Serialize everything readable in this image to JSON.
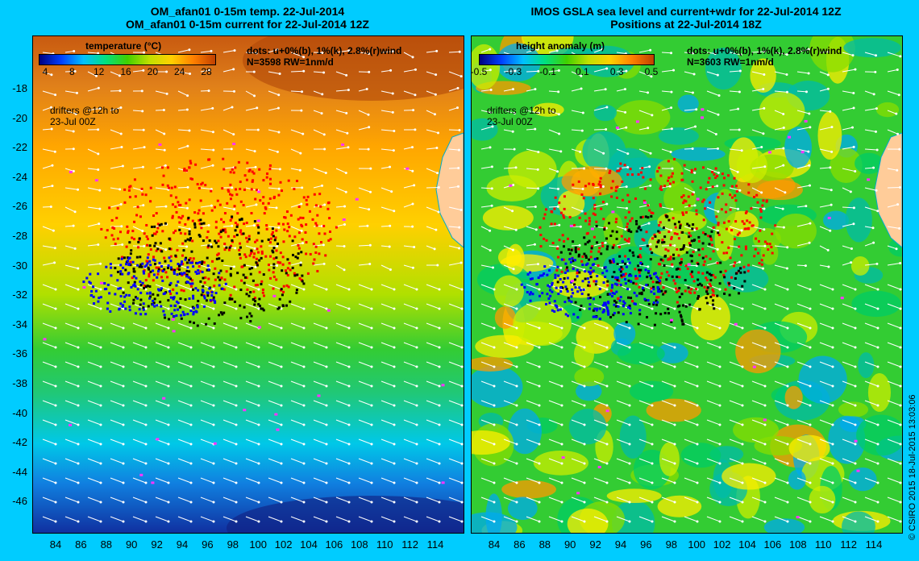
{
  "left_panel": {
    "title_line1": "OM_afan01 0-15m temp. 22-Jul-2014",
    "title_line2": "OM_afan01 0-15m current for 22-Jul-2014 12Z",
    "colorbar_title": "temperature (°C)",
    "colorbar_ticks": [
      "4",
      "8",
      "12",
      "16",
      "20",
      "24",
      "28"
    ],
    "dots_line1": "dots: u+0%(b), 1%(k), 2.8%(r)wind",
    "dots_line2": "N=3598 RW=1nm/d",
    "drifters_line1": "drifters @12h to",
    "drifters_line2": "23-Jul 00Z"
  },
  "right_panel": {
    "title_line1": "IMOS GSLA sea level and current+wdr for 22-Jul-2014 12Z",
    "title_line2": "Positions at 22-Jul-2014 18Z",
    "colorbar_title": "height anomaly (m)",
    "colorbar_ticks": [
      "-0.5",
      "-0.3",
      "-0.1",
      "0.1",
      "0.3",
      "0.5"
    ],
    "dots_line1": "dots: u+0%(b), 1%(k), 2.8%(r)wind",
    "dots_line2": "N=3603 RW=1nm/d",
    "drifters_line1": "drifters @12h to",
    "drifters_line2": "23-Jul 00Z"
  },
  "y_axis_labels": [
    "-18",
    "-20",
    "-22",
    "-24",
    "-26",
    "-28",
    "-30",
    "-32",
    "-34",
    "-36",
    "-38",
    "-40",
    "-42",
    "-44",
    "-46"
  ],
  "x_axis_labels": [
    "84",
    "86",
    "88",
    "90",
    "92",
    "94",
    "96",
    "98",
    "100",
    "102",
    "104",
    "106",
    "108",
    "110",
    "112",
    "114"
  ],
  "credit": "© CSIRO 2015   18-Jul-2015 13:03:06",
  "colors": {
    "background": "#00ccff",
    "land": "#ffcc99",
    "blue_dots": "#0000ff",
    "black_dots": "#000000",
    "red_dots": "#ff0000",
    "magenta_drifters": "#ff33ff"
  }
}
